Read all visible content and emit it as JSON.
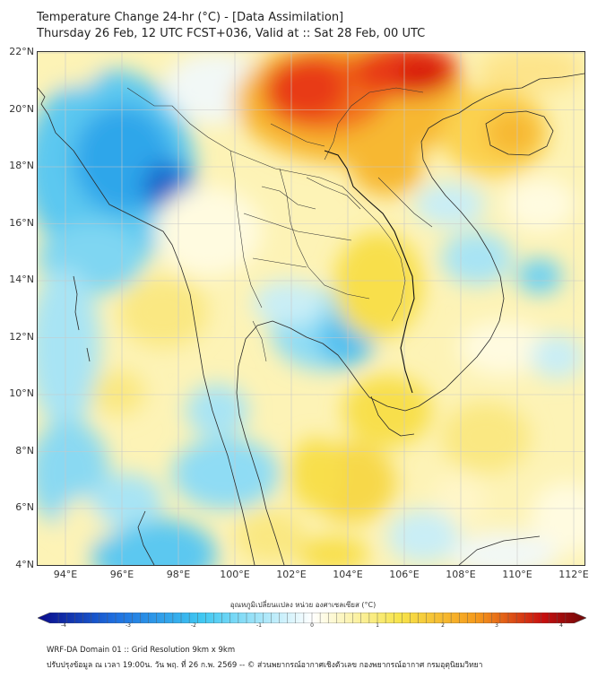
{
  "title": {
    "line1": "Temperature Change 24-hr (°C) - [Data Assimilation]",
    "line2": "Thursday 26 Feb, 12 UTC FCST+036, Valid at :: Sat 28 Feb, 00 UTC"
  },
  "map": {
    "lat_ticks": [
      "22°N",
      "20°N",
      "18°N",
      "16°N",
      "14°N",
      "12°N",
      "10°N",
      "8°N",
      "6°N",
      "4°N"
    ],
    "lon_ticks": [
      "94°E",
      "96°E",
      "98°E",
      "100°E",
      "102°E",
      "104°E",
      "106°E",
      "108°E",
      "110°E",
      "112°E"
    ],
    "grid": true
  },
  "colorbar": {
    "title": "อุณหภูมิเปลี่ยนแปลง หน่วย องศาเซลเซียส (°C)",
    "tick_labels": [
      "-4",
      "-3",
      "-2",
      "-1",
      "0",
      "1",
      "2",
      "3",
      "4"
    ],
    "range": [
      -4,
      4
    ],
    "colors": {
      "cold_extreme": "#0a0a8a",
      "cold": "#1e6fe0",
      "cool": "#3fc8f2",
      "neutral": "#ffffff",
      "warm": "#f7e44a",
      "hot": "#f59a1c",
      "extreme": "#c81010",
      "hot_extreme": "#6e0808"
    }
  },
  "footer": {
    "line1": "WRF-DA Domain 01 :: Grid Resolution 9km x 9km",
    "line2": "ปรับปรุงข้อมูล ณ เวลา 19:00น. วัน พฤ. ที่ 26 ก.พ. 2569 -- © ส่วนพยากรณ์อากาศเชิงตัวเลข กองพยากรณ์อากาศ กรมอุตุนิยมวิทยา"
  }
}
